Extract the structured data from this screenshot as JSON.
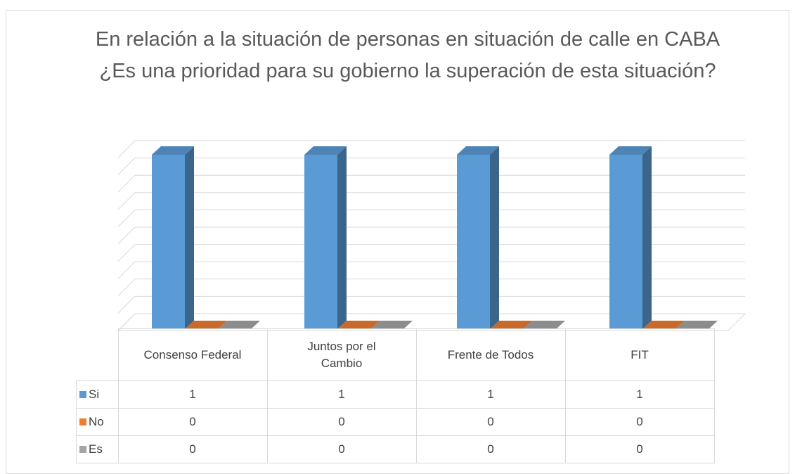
{
  "chart_data": {
    "type": "bar3d",
    "title": "En relación a la situación de personas en situación de calle en CABA ¿Es una prioridad para su gobierno la superación de esta situación?",
    "categories": [
      "Consenso Federal",
      "Juntos por el Cambio",
      "Frente de Todos",
      "FIT"
    ],
    "series": [
      {
        "name": "Si",
        "color": "#5b9bd5",
        "values": [
          1,
          1,
          1,
          1
        ]
      },
      {
        "name": "No",
        "color": "#ed7d31",
        "values": [
          0,
          0,
          0,
          0
        ]
      },
      {
        "name": "Es",
        "color": "#a5a5a5",
        "values": [
          0,
          0,
          0,
          0
        ]
      }
    ],
    "ylim": [
      0,
      1
    ],
    "yticks": [
      0,
      0.1,
      0.2,
      0.3,
      0.4,
      0.5,
      0.6,
      0.7,
      0.8,
      0.9,
      1
    ],
    "grid": true,
    "data_table": true
  }
}
